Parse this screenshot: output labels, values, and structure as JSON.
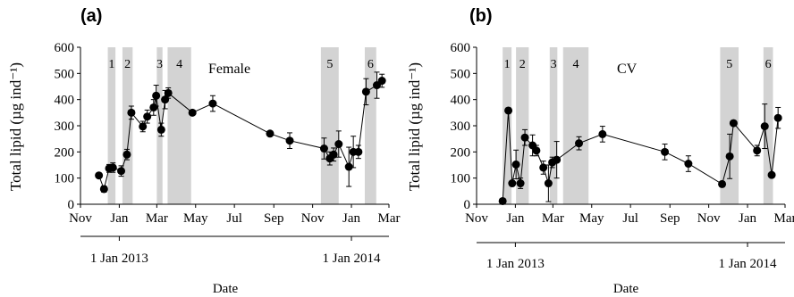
{
  "panels": [
    {
      "id": "a",
      "panel_label": "(a)",
      "annotation": "Female",
      "chart_data": {
        "type": "scatter",
        "panel": "(a)",
        "ylabel": "Total lipid (µg ind⁻¹)",
        "xlabel": "Date",
        "ylim": [
          0,
          600
        ],
        "yticks": [
          0,
          100,
          200,
          300,
          400,
          500,
          600
        ],
        "xlim": [
          "2012-11-01",
          "2014-03-01"
        ],
        "xticks": [
          {
            "date": "2012-11-01",
            "label": "Nov"
          },
          {
            "date": "2013-01-01",
            "label": "Jan"
          },
          {
            "date": "2013-03-01",
            "label": "Mar"
          },
          {
            "date": "2013-05-01",
            "label": "May"
          },
          {
            "date": "2013-07-01",
            "label": "Jul"
          },
          {
            "date": "2013-09-01",
            "label": "Sep"
          },
          {
            "date": "2013-11-01",
            "label": "Nov"
          },
          {
            "date": "2014-01-01",
            "label": "Jan"
          },
          {
            "date": "2014-03-01",
            "label": "Mar"
          }
        ],
        "year_labels": [
          {
            "date": "2013-01-01",
            "label": "1 Jan 2013"
          },
          {
            "date": "2014-01-01",
            "label": "1 Jan 2014"
          }
        ],
        "shaded_periods": [
          {
            "label": "1",
            "start": "2012-12-14",
            "end": "2012-12-26"
          },
          {
            "label": "2",
            "start": "2013-01-06",
            "end": "2013-01-22"
          },
          {
            "label": "3",
            "start": "2013-03-01",
            "end": "2013-03-10"
          },
          {
            "label": "4",
            "start": "2013-03-18",
            "end": "2013-04-24"
          },
          {
            "label": "5",
            "start": "2013-11-14",
            "end": "2013-12-12"
          },
          {
            "label": "6",
            "start": "2014-01-22",
            "end": "2014-02-09"
          }
        ],
        "points": [
          {
            "x": "2012-11-30",
            "y": 110,
            "err": 0
          },
          {
            "x": "2012-12-08",
            "y": 58,
            "err": 12
          },
          {
            "x": "2012-12-16",
            "y": 137,
            "err": 15
          },
          {
            "x": "2012-12-22",
            "y": 140,
            "err": 18
          },
          {
            "x": "2013-01-04",
            "y": 127,
            "err": 20
          },
          {
            "x": "2013-01-13",
            "y": 190,
            "err": 20
          },
          {
            "x": "2013-01-20",
            "y": 350,
            "err": 25
          },
          {
            "x": "2013-02-07",
            "y": 297,
            "err": 20
          },
          {
            "x": "2013-02-14",
            "y": 335,
            "err": 25
          },
          {
            "x": "2013-02-24",
            "y": 370,
            "err": 30
          },
          {
            "x": "2013-02-28",
            "y": 415,
            "err": 40
          },
          {
            "x": "2013-03-08",
            "y": 285,
            "err": 25
          },
          {
            "x": "2013-03-14",
            "y": 400,
            "err": 35
          },
          {
            "x": "2013-03-19",
            "y": 425,
            "err": 20
          },
          {
            "x": "2013-04-26",
            "y": 350,
            "err": 0
          },
          {
            "x": "2013-05-28",
            "y": 385,
            "err": 30
          },
          {
            "x": "2013-08-26",
            "y": 270,
            "err": 0
          },
          {
            "x": "2013-09-26",
            "y": 243,
            "err": 30
          },
          {
            "x": "2013-11-19",
            "y": 213,
            "err": 40
          },
          {
            "x": "2013-11-28",
            "y": 175,
            "err": 25
          },
          {
            "x": "2013-12-04",
            "y": 190,
            "err": 25
          },
          {
            "x": "2013-12-12",
            "y": 230,
            "err": 50
          },
          {
            "x": "2013-12-28",
            "y": 143,
            "err": 75
          },
          {
            "x": "2014-01-04",
            "y": 200,
            "err": 60
          },
          {
            "x": "2014-01-12",
            "y": 200,
            "err": 25
          },
          {
            "x": "2014-01-24",
            "y": 430,
            "err": 50
          },
          {
            "x": "2014-02-10",
            "y": 455,
            "err": 50
          },
          {
            "x": "2014-02-18",
            "y": 472,
            "err": 25
          }
        ]
      }
    },
    {
      "id": "b",
      "panel_label": "(b)",
      "annotation": "CV",
      "chart_data": {
        "type": "scatter",
        "panel": "(b)",
        "ylabel": "Total lipid (µg ind⁻¹)",
        "xlabel": "Date",
        "ylim": [
          0,
          600
        ],
        "yticks": [
          0,
          100,
          200,
          300,
          400,
          500,
          600
        ],
        "xlim": [
          "2012-11-01",
          "2014-03-01"
        ],
        "xticks": [
          {
            "date": "2012-11-01",
            "label": "Nov"
          },
          {
            "date": "2013-01-01",
            "label": "Jan"
          },
          {
            "date": "2013-03-01",
            "label": "Mar"
          },
          {
            "date": "2013-05-01",
            "label": "May"
          },
          {
            "date": "2013-07-01",
            "label": "Jul"
          },
          {
            "date": "2013-09-01",
            "label": "Sep"
          },
          {
            "date": "2013-11-01",
            "label": "Nov"
          },
          {
            "date": "2014-01-01",
            "label": "Jan"
          },
          {
            "date": "2014-03-01",
            "label": "Mar"
          }
        ],
        "year_labels": [
          {
            "date": "2013-01-01",
            "label": "1 Jan 2013"
          },
          {
            "date": "2014-01-01",
            "label": "1 Jan 2014"
          }
        ],
        "shaded_periods": [
          {
            "label": "1",
            "start": "2012-12-12",
            "end": "2012-12-26"
          },
          {
            "label": "2",
            "start": "2013-01-02",
            "end": "2013-01-22"
          },
          {
            "label": "3",
            "start": "2013-02-24",
            "end": "2013-03-08"
          },
          {
            "label": "4",
            "start": "2013-03-17",
            "end": "2013-04-26"
          },
          {
            "label": "5",
            "start": "2013-11-19",
            "end": "2013-12-18"
          },
          {
            "label": "6",
            "start": "2014-01-26",
            "end": "2014-02-10"
          }
        ],
        "points": [
          {
            "x": "2012-12-12",
            "y": 12,
            "err": 0
          },
          {
            "x": "2012-12-21",
            "y": 358,
            "err": 0
          },
          {
            "x": "2012-12-27",
            "y": 80,
            "err": 0
          },
          {
            "x": "2013-01-02",
            "y": 152,
            "err": 55
          },
          {
            "x": "2013-01-09",
            "y": 80,
            "err": 20
          },
          {
            "x": "2013-01-16",
            "y": 255,
            "err": 30
          },
          {
            "x": "2013-01-28",
            "y": 225,
            "err": 40
          },
          {
            "x": "2013-02-03",
            "y": 205,
            "err": 20
          },
          {
            "x": "2013-02-14",
            "y": 140,
            "err": 25
          },
          {
            "x": "2013-02-22",
            "y": 80,
            "err": 70
          },
          {
            "x": "2013-02-28",
            "y": 160,
            "err": 20
          },
          {
            "x": "2013-03-07",
            "y": 170,
            "err": 70
          },
          {
            "x": "2013-04-11",
            "y": 233,
            "err": 25
          },
          {
            "x": "2013-05-18",
            "y": 268,
            "err": 30
          },
          {
            "x": "2013-08-24",
            "y": 200,
            "err": 30
          },
          {
            "x": "2013-09-30",
            "y": 155,
            "err": 30
          },
          {
            "x": "2013-11-22",
            "y": 77,
            "err": 0
          },
          {
            "x": "2013-12-04",
            "y": 183,
            "err": 85
          },
          {
            "x": "2013-12-10",
            "y": 310,
            "err": 0
          },
          {
            "x": "2014-01-16",
            "y": 205,
            "err": 20
          },
          {
            "x": "2014-01-28",
            "y": 298,
            "err": 85
          },
          {
            "x": "2014-02-08",
            "y": 112,
            "err": 0
          },
          {
            "x": "2014-02-18",
            "y": 330,
            "err": 40
          }
        ]
      }
    }
  ]
}
